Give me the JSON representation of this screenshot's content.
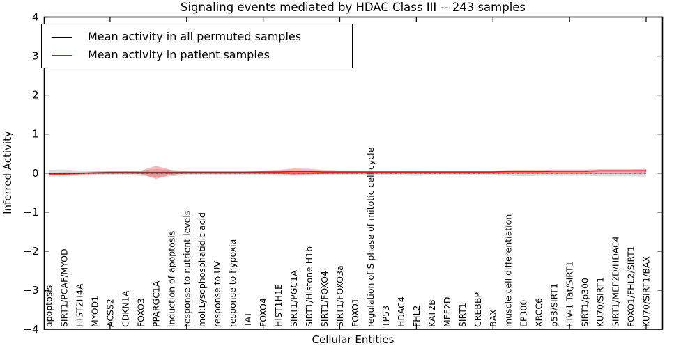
{
  "figure": {
    "title": "Signaling events mediated by HDAC Class III -- 243 samples",
    "xlabel": "Cellular Entities",
    "ylabel": "Inferred Activity"
  },
  "legend": {
    "position": "upper left",
    "items": [
      {
        "label": "Mean activity in all permuted samples",
        "color": "#000000"
      },
      {
        "label": "Mean activity in patient samples",
        "color": "#ff0000"
      }
    ]
  },
  "chart_data": {
    "type": "line",
    "title": "Signaling events mediated by HDAC Class III -- 243 samples",
    "xlabel": "Cellular Entities",
    "ylabel": "Inferred Activity",
    "ylim": [
      -4,
      4
    ],
    "yticks": [
      4,
      3,
      2,
      1,
      0,
      -1,
      -2,
      -3,
      -4
    ],
    "ytick_labels": [
      "4",
      "3",
      "2",
      "1",
      "0",
      "−1",
      "−2",
      "−3",
      "−4"
    ],
    "grid": false,
    "zero_line": {
      "y": 0,
      "style": "dotted",
      "color": "#000000"
    },
    "x_major_tick_indices": [
      4,
      9,
      14,
      19,
      24,
      29,
      34,
      39
    ],
    "categories": [
      "apoptosis",
      "SIRT1/PCAF/MYOD",
      "HIST2H4A",
      "MYOD1",
      "ACSS2",
      "CDKN1A",
      "FOXO3",
      "PPARGC1A",
      "induction of apoptosis",
      "response to nutrient levels",
      "mol:Lysophosphatidic acid",
      "response to UV",
      "response to hypoxia",
      "TAT",
      "FOXO4",
      "HIST1H1E",
      "SIRT1/PGC1A",
      "SIRT1/Histone H1b",
      "SIRT1/FOXO4",
      "SIRT1/FOXO3a",
      "FOXO1",
      "regulation of S phase of mitotic cell cycle",
      "TP53",
      "HDAC4",
      "FHL2",
      "KAT2B",
      "MEF2D",
      "SIRT1",
      "CREBBP",
      "BAX",
      "muscle cell differentiation",
      "EP300",
      "XRCC6",
      "p53/SIRT1",
      "HIV-1 Tat/SIRT1",
      "SIRT1/p300",
      "KU70/SIRT1",
      "SIRT1/MEF2D/HDAC4",
      "FOXO1/FHL2/SIRT1",
      "KU70/SIRT1/BAX"
    ],
    "series": [
      {
        "name": "Mean activity in all permuted samples",
        "color": "#000000",
        "band_color": "#bbbbbb",
        "values": [
          0,
          0,
          0,
          0,
          0,
          0,
          0,
          0,
          0,
          0,
          0,
          0,
          0,
          0,
          0,
          0,
          0,
          0,
          0,
          0,
          0,
          0,
          0,
          0,
          0,
          0,
          0,
          0,
          0,
          0,
          0,
          0,
          0,
          0,
          0,
          0,
          0,
          0,
          0,
          0
        ],
        "band_halfwidth": [
          0.09,
          0.09,
          0.07,
          0.06,
          0.06,
          0.06,
          0.07,
          0.1,
          0.08,
          0.06,
          0.06,
          0.06,
          0.06,
          0.06,
          0.06,
          0.07,
          0.07,
          0.07,
          0.06,
          0.06,
          0.06,
          0.06,
          0.06,
          0.06,
          0.07,
          0.06,
          0.06,
          0.06,
          0.06,
          0.06,
          0.07,
          0.08,
          0.07,
          0.07,
          0.07,
          0.07,
          0.08,
          0.08,
          0.08,
          0.09
        ]
      },
      {
        "name": "Mean activity in patient samples",
        "color": "#ff0000",
        "band_color": "#ff0000",
        "values": [
          -0.02,
          -0.02,
          -0.01,
          0.01,
          0.02,
          0.02,
          0.02,
          0.02,
          0.02,
          0.02,
          0.02,
          0.02,
          0.02,
          0.02,
          0.03,
          0.03,
          0.04,
          0.04,
          0.03,
          0.03,
          0.03,
          0.03,
          0.03,
          0.03,
          0.03,
          0.03,
          0.03,
          0.03,
          0.03,
          0.03,
          0.04,
          0.04,
          0.04,
          0.05,
          0.05,
          0.05,
          0.06,
          0.06,
          0.06,
          0.06
        ],
        "band_halfwidth": [
          0.03,
          0.04,
          0.03,
          0.03,
          0.03,
          0.03,
          0.04,
          0.17,
          0.06,
          0.03,
          0.03,
          0.03,
          0.03,
          0.03,
          0.04,
          0.05,
          0.08,
          0.07,
          0.05,
          0.04,
          0.04,
          0.03,
          0.03,
          0.03,
          0.03,
          0.03,
          0.03,
          0.03,
          0.03,
          0.03,
          0.04,
          0.04,
          0.04,
          0.04,
          0.04,
          0.04,
          0.04,
          0.04,
          0.04,
          0.05
        ]
      }
    ]
  }
}
